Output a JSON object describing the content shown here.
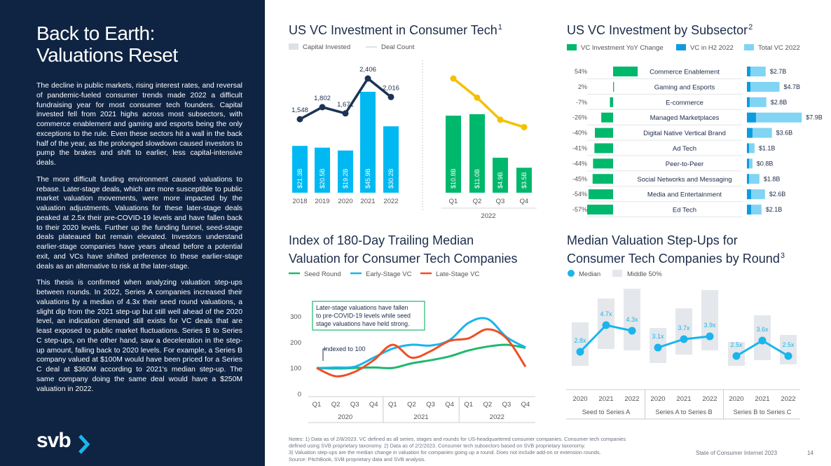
{
  "sidebar": {
    "title": [
      "Back to Earth:",
      "Valuations Reset"
    ],
    "paragraphs": [
      "The decline in public markets, rising interest rates, and reversal of pandemic-fueled consumer trends made 2022 a difficult fundraising year for most consumer tech founders. Capital invested fell from 2021 highs across most subsectors, with commerce enablement and gaming and esports being the only exceptions to the rule. Even these sectors hit a wall in the back half of the year, as the prolonged slowdown caused investors to pump the brakes and shift to earlier, less capital-intensive deals.",
      "The more difficult funding environment caused valuations to rebase. Later-stage deals, which are more susceptible to public market valuation movements, were more impacted by the valuation adjustments. Valuations for these later-stage deals peaked at 2.5x their pre-COVID-19 levels and have fallen back to their 2020 levels. Further up the funding funnel, seed-stage deals plateaued but remain elevated. Investors understand earlier-stage companies have years ahead before a potential exit, and VCs have shifted preference to these earlier-stage deals as an alternative to risk at the later-stage.",
      "This thesis is confirmed when analyzing valuation step-ups between rounds. In 2022, Series A companies increased their valuations by a median of 4.3x their seed round valuations, a slight dip from the 2021 step-up but still well ahead of the 2020 level, an indication demand still exists for VC deals that are least exposed to public market fluctuations. Series B to Series C step-ups, on the other hand, saw a deceleration in the step-up amount, falling back to 2020 levels. For example, a Series B company valued at $100M would have been priced for a Series C deal at $360M according to 2021's median step-up. The same company doing the same deal would have a $250M valuation in 2022."
    ],
    "logo": "svb"
  },
  "footer": {
    "notes": [
      "Notes: 1) Data as of 2/8/2023. VC defined as all series, stages and rounds for US-headquartered consumer companies. Consumer tech companies",
      "defined using SVB proprietary taxonomy. 2) Data as of 2/2/2023. Consumer tech subsectors based on SVB proprietary taxonomy.",
      "3) Valuation step-ups are the median change in valuation for companies going up a round. Does not include add-on or extension rounds.",
      "Source: PitchBook, SVB proprietary data and SVB analysis."
    ],
    "publication": "State of Consumer Internet 2023",
    "page": "14"
  },
  "chart_data": [
    {
      "type": "bar-line",
      "title": "US VC Investment in Consumer Tech",
      "title_sup": "1",
      "series": [
        {
          "name": "Capital Invested",
          "color": "#dde1e6"
        },
        {
          "name": "Deal Count",
          "color": "#dde1e6"
        }
      ],
      "panels": [
        {
          "categories": [
            "2018",
            "2019",
            "2020",
            "2021",
            "2022"
          ],
          "bar_color": "#00b9f2",
          "line_color": "#1c3356",
          "bars": [
            21.3,
            20.5,
            19.2,
            45.9,
            30.2
          ],
          "bar_labels": [
            "$21.3B",
            "$20.5B",
            "$19.2B",
            "$45.9B",
            "$30.2B"
          ],
          "line": [
            1548,
            1802,
            1671,
            2406,
            2016
          ],
          "line_labels": [
            "1,548",
            "1,802",
            "1,671",
            "2,406",
            "2,016"
          ]
        },
        {
          "categories": [
            "Q1",
            "Q2",
            "Q3",
            "Q4"
          ],
          "group_label": "2022",
          "bar_color": "#00b86b",
          "line_color": "#f5c000",
          "bars": [
            10.8,
            11.0,
            4.9,
            3.5
          ],
          "bar_labels": [
            "$10.8B",
            "$11.0B",
            "$4.9B",
            "$3.5B"
          ],
          "line": [
            662,
            551,
            423,
            380
          ]
        }
      ]
    },
    {
      "type": "bar-h",
      "title": "US VC Investment by Subsector",
      "title_sup": "2",
      "categories": [
        "Commerce Enablement",
        "Gaming and Esports",
        "E-commerce",
        "Managed Marketplaces",
        "Digital Native Vertical Brand",
        "Ad Tech",
        "Peer-to-Peer",
        "Social Networks and Messaging",
        "Media and Entertainment",
        "Ed Tech"
      ],
      "series": [
        {
          "name": "VC Investment YoY Change",
          "color": "#00b86b",
          "values": [
            54,
            2,
            -7,
            -26,
            -40,
            -41,
            -44,
            -45,
            -54,
            -57
          ],
          "value_labels": [
            "54%",
            "2%",
            "-7%",
            "-26%",
            "-40%",
            "-41%",
            "-44%",
            "-45%",
            "-54%",
            "-57%"
          ]
        },
        {
          "name": "VC in H2 2022",
          "color": "#0a9be0",
          "values": [
            0.5,
            0.5,
            0.4,
            1.3,
            0.8,
            0.3,
            0.3,
            0.3,
            0.6,
            0.6
          ]
        },
        {
          "name": "Total VC 2022",
          "color": "#80d4f4",
          "values": [
            2.7,
            4.7,
            2.8,
            7.9,
            3.6,
            1.1,
            0.8,
            1.8,
            2.6,
            2.1
          ],
          "value_labels": [
            "$2.7B",
            "$4.7B",
            "$2.8B",
            "$7.9B",
            "$3.6B",
            "$1.1B",
            "$0.8B",
            "$1.8B",
            "$2.6B",
            "$2.1B"
          ]
        }
      ]
    },
    {
      "type": "line",
      "title": [
        "Index of 180-Day Trailing Median",
        "Valuation for Consumer Tech Companies"
      ],
      "categories": [
        "Q1",
        "Q2",
        "Q3",
        "Q4",
        "Q1",
        "Q2",
        "Q3",
        "Q4",
        "Q1",
        "Q2",
        "Q3",
        "Q4"
      ],
      "groups": [
        "2020",
        "2021",
        "2022"
      ],
      "series": [
        {
          "name": "Seed Round",
          "color": "#1db870",
          "values": [
            100,
            98,
            100,
            102,
            100,
            118,
            130,
            145,
            168,
            183,
            190,
            178
          ]
        },
        {
          "name": "Early-Stage VC",
          "color": "#19b5ec",
          "values": [
            100,
            102,
            105,
            140,
            175,
            190,
            187,
            208,
            275,
            290,
            220,
            180
          ]
        },
        {
          "name": "Late-Stage VC",
          "color": "#f04e23",
          "values": [
            100,
            68,
            85,
            130,
            190,
            140,
            165,
            205,
            215,
            250,
            215,
            105
          ]
        }
      ],
      "ylim": [
        0,
        350
      ],
      "yticks": [
        0,
        100,
        200,
        300
      ],
      "annotation": [
        "Later-stage valuations have fallen",
        "to pre-COVID-19 levels while seed",
        "stage valuations have held strong."
      ],
      "baseline_note": "Indexed to 100"
    },
    {
      "type": "dot-range",
      "title": [
        "Median Valuation Step-Ups for",
        "Consumer Tech Companies by Round"
      ],
      "title_sup": "3",
      "series": [
        {
          "name": "Median",
          "color": "#19b5ec"
        },
        {
          "name": "Middle 50%",
          "color": "#e4e7eb"
        }
      ],
      "groups": [
        {
          "name": "Seed to Series A",
          "categories": [
            "2020",
            "2021",
            "2022"
          ],
          "values": [
            2.8,
            4.7,
            4.3
          ],
          "value_labels": [
            "2.8x",
            "4.7x",
            "4.3x"
          ],
          "low": [
            1.8,
            3.0,
            2.9
          ],
          "high": [
            4.9,
            6.6,
            7.3
          ]
        },
        {
          "name": "Series A to Series B",
          "categories": [
            "2020",
            "2021",
            "2022"
          ],
          "values": [
            3.1,
            3.7,
            3.9
          ],
          "value_labels": [
            "3.1x",
            "3.7x",
            "3.9x"
          ],
          "low": [
            2.0,
            2.6,
            2.9
          ],
          "high": [
            4.5,
            5.9,
            7.2
          ]
        },
        {
          "name": "Series B to Series C",
          "categories": [
            "2020",
            "2021",
            "2022"
          ],
          "values": [
            2.5,
            3.6,
            2.5
          ],
          "value_labels": [
            "2.5x",
            "3.6x",
            "2.5x"
          ],
          "low": [
            1.8,
            2.2,
            1.9
          ],
          "high": [
            3.5,
            5.4,
            4.0
          ]
        }
      ]
    }
  ]
}
